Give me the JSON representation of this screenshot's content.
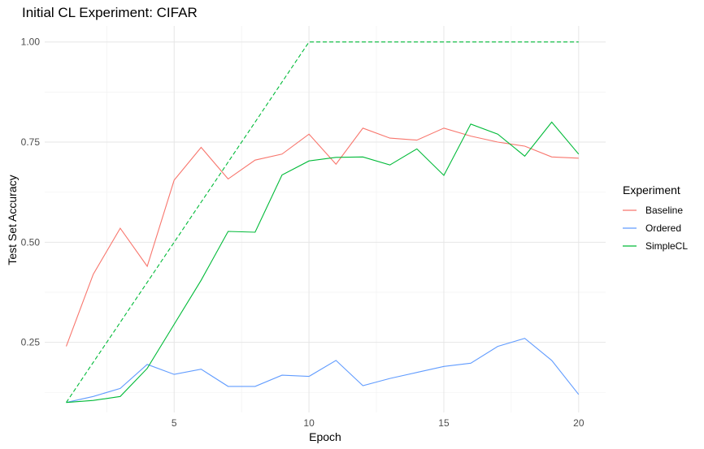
{
  "chart_data": {
    "type": "line",
    "title": "Initial CL Experiment: CIFAR",
    "xlabel": "Epoch",
    "ylabel": "Test Set Accuracy",
    "xlim": [
      0.2,
      21
    ],
    "ylim": [
      0.075,
      1.04
    ],
    "x_ticks": [
      5,
      10,
      15,
      20
    ],
    "y_ticks": [
      0.25,
      0.5,
      0.75,
      1.0
    ],
    "y_tick_labels": [
      "0.25",
      "0.50",
      "0.75",
      "1.00"
    ],
    "grid": true,
    "legend": {
      "title": "Experiment",
      "position": "right"
    },
    "x": [
      1,
      2,
      3,
      4,
      5,
      6,
      7,
      8,
      9,
      10,
      11,
      12,
      13,
      14,
      15,
      16,
      17,
      18,
      19,
      20
    ],
    "series": [
      {
        "name": "Baseline",
        "color": "#F8766D",
        "dash": "solid",
        "values": [
          0.24,
          0.42,
          0.535,
          0.44,
          0.655,
          0.737,
          0.658,
          0.705,
          0.72,
          0.77,
          0.695,
          0.785,
          0.76,
          0.755,
          0.785,
          0.765,
          0.75,
          0.74,
          0.713,
          0.71
        ]
      },
      {
        "name": "Ordered",
        "color": "#619CFF",
        "dash": "solid",
        "values": [
          0.1,
          0.115,
          0.135,
          0.195,
          0.17,
          0.183,
          0.14,
          0.14,
          0.168,
          0.165,
          0.205,
          0.142,
          0.16,
          0.175,
          0.19,
          0.198,
          0.24,
          0.26,
          0.205,
          0.12
        ]
      },
      {
        "name": "SimpleCL",
        "color": "#00BA38",
        "dash": "solid",
        "values": [
          0.1,
          0.105,
          0.115,
          0.185,
          0.295,
          0.405,
          0.527,
          0.525,
          0.668,
          0.703,
          0.712,
          0.713,
          0.693,
          0.733,
          0.667,
          0.795,
          0.77,
          0.715,
          0.8,
          0.72
        ]
      },
      {
        "name": "",
        "color": "#00BA38",
        "dash": "dashed",
        "values": [
          0.1,
          0.2,
          0.3,
          0.4,
          0.5,
          0.6,
          0.7,
          0.8,
          0.9,
          1.0,
          1.0,
          1.0,
          1.0,
          1.0,
          1.0,
          1.0,
          1.0,
          1.0,
          1.0,
          1.0
        ]
      }
    ],
    "legend_entries": [
      {
        "label": "Baseline",
        "color": "#F8766D"
      },
      {
        "label": "Ordered",
        "color": "#619CFF"
      },
      {
        "label": "SimpleCL",
        "color": "#00BA38"
      }
    ]
  }
}
